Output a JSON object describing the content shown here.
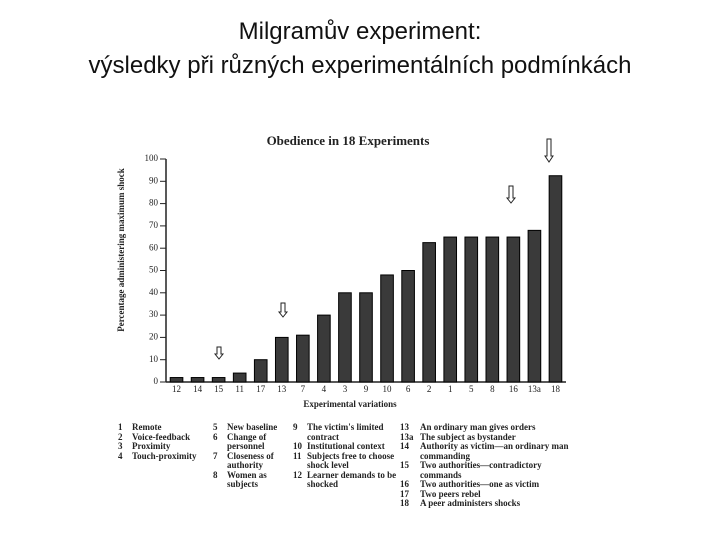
{
  "slide_title": [
    "Milgramův experiment:",
    "výsledky při různých experimentálních  podmínkách"
  ],
  "chart_data": {
    "type": "bar",
    "title": "Obedience in 18 Experiments",
    "x_label": "Experimental variations",
    "y_label": "Percentage administering maximum shock",
    "categories": [
      "12",
      "14",
      "15",
      "11",
      "17",
      "13",
      "7",
      "4",
      "3",
      "9",
      "10",
      "6",
      "2",
      "1",
      "5",
      "8",
      "16",
      "13a",
      "18"
    ],
    "values": [
      2,
      2,
      2,
      4,
      10,
      20,
      21,
      30,
      40,
      40,
      48,
      50,
      62.5,
      65,
      65,
      65,
      65,
      68,
      92.5
    ],
    "color": "#3a3a3a",
    "ylim": [
      0,
      100
    ],
    "yticks": [
      0,
      10,
      20,
      30,
      40,
      50,
      60,
      70,
      80,
      90,
      100
    ],
    "grid": false
  },
  "legend_columns": [
    [
      {
        "number": "1",
        "text": "Remote"
      },
      {
        "number": "2",
        "text": "Voice-feedback"
      },
      {
        "number": "3",
        "text": "Proximity"
      },
      {
        "number": "4",
        "text": "Touch-proximity"
      }
    ],
    [
      {
        "number": "5",
        "text": "New baseline"
      },
      {
        "number": "6",
        "text": "Change of personnel"
      },
      {
        "number": "7",
        "text": "Closeness of authority"
      },
      {
        "number": "8",
        "text": "Women as subjects"
      }
    ],
    [
      {
        "number": "9",
        "text": "The victim's limited contract"
      },
      {
        "number": "10",
        "text": "Institutional context"
      },
      {
        "number": "11",
        "text": "Subjects free to choose shock level"
      },
      {
        "number": "12",
        "text": "Learner demands to be shocked"
      }
    ],
    [
      {
        "number": "13",
        "text": "An ordinary man gives orders"
      },
      {
        "number": "13a",
        "text": "The subject as bystander"
      },
      {
        "number": "14",
        "text": "Authority as victim—an ordinary man commanding"
      },
      {
        "number": "15",
        "text": "Two authorities—contradictory commands"
      },
      {
        "number": "16",
        "text": "Two authorities—one as victim"
      },
      {
        "number": "17",
        "text": "Two peers rebel"
      },
      {
        "number": "18",
        "text": "A peer administers shocks"
      }
    ]
  ]
}
